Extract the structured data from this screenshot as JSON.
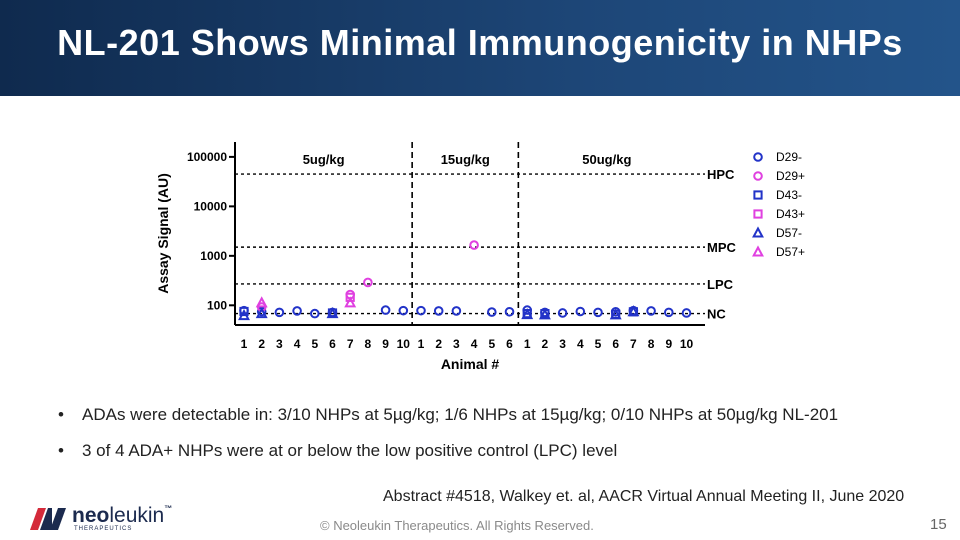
{
  "header": {
    "title": "NL-201 Shows Minimal Immunogenicity in NHPs"
  },
  "bullets": [
    "ADAs were detectable in:  3/10 NHPs at 5µg/kg; 1/6 NHPs at 15µg/kg; 0/10 NHPs at 50µg/kg NL-201",
    "3 of 4 ADA+ NHPs were at or below the low positive control (LPC) level"
  ],
  "bullet_symbol": "•",
  "citation": "Abstract #4518, Walkey et. al, AACR Virtual Annual Meeting II, June 2020",
  "footer": "© Neoleukin Therapeutics. All Rights Reserved.",
  "page_number": "15",
  "logo": {
    "word_bold": "neo",
    "word_light": "leukin",
    "tm": "™",
    "subtitle": "THERAPEUTICS"
  },
  "colors": {
    "header_bg": "#1d4677",
    "blue": "#2233c8",
    "magenta": "#e040e0",
    "logo_red": "#d42a3a",
    "logo_navy": "#1b2a4e"
  },
  "chart_data": {
    "type": "scatter",
    "ylabel": "Assay Signal (AU)",
    "xlabel": "Animal #",
    "yscale": "log",
    "ylim": [
      40,
      200000
    ],
    "yticks": [
      {
        "value": 100,
        "label": "100"
      },
      {
        "value": 1000,
        "label": "1000"
      },
      {
        "value": 10000,
        "label": "10000"
      },
      {
        "value": 100000,
        "label": "100000"
      }
    ],
    "groups": [
      {
        "label": "5ug/kg",
        "animals": [
          "1",
          "2",
          "3",
          "4",
          "5",
          "6",
          "7",
          "8",
          "9",
          "10"
        ]
      },
      {
        "label": "15ug/kg",
        "animals": [
          "1",
          "2",
          "3",
          "4",
          "5",
          "6"
        ]
      },
      {
        "label": "50ug/kg",
        "animals": [
          "1",
          "2",
          "3",
          "4",
          "5",
          "6",
          "7",
          "8",
          "9",
          "10"
        ]
      }
    ],
    "reference_lines": [
      {
        "label": "HPC",
        "value": 45000
      },
      {
        "label": "MPC",
        "value": 1500
      },
      {
        "label": "LPC",
        "value": 270
      },
      {
        "label": "NC",
        "value": 68
      }
    ],
    "legend": [
      {
        "name": "D29-",
        "marker": "circle",
        "color": "#2233c8"
      },
      {
        "name": "D29+",
        "marker": "circle",
        "color": "#e040e0"
      },
      {
        "name": "D43-",
        "marker": "square",
        "color": "#2233c8"
      },
      {
        "name": "D43+",
        "marker": "square",
        "color": "#e040e0"
      },
      {
        "name": "D57-",
        "marker": "triangle",
        "color": "#2233c8"
      },
      {
        "name": "D57+",
        "marker": "triangle",
        "color": "#e040e0"
      }
    ],
    "series": [
      {
        "name": "D29-",
        "points": [
          {
            "g": 0,
            "a": 1,
            "y": 78
          },
          {
            "g": 0,
            "a": 2,
            "y": 75
          },
          {
            "g": 0,
            "a": 3,
            "y": 72
          },
          {
            "g": 0,
            "a": 4,
            "y": 77
          },
          {
            "g": 0,
            "a": 5,
            "y": 68
          },
          {
            "g": 0,
            "a": 6,
            "y": 72
          },
          {
            "g": 0,
            "a": 9,
            "y": 80
          },
          {
            "g": 0,
            "a": 10,
            "y": 78
          },
          {
            "g": 1,
            "a": 1,
            "y": 78
          },
          {
            "g": 1,
            "a": 2,
            "y": 77
          },
          {
            "g": 1,
            "a": 3,
            "y": 77
          },
          {
            "g": 1,
            "a": 5,
            "y": 73
          },
          {
            "g": 1,
            "a": 6,
            "y": 74
          },
          {
            "g": 2,
            "a": 1,
            "y": 80
          },
          {
            "g": 2,
            "a": 2,
            "y": 72
          },
          {
            "g": 2,
            "a": 3,
            "y": 70
          },
          {
            "g": 2,
            "a": 4,
            "y": 75
          },
          {
            "g": 2,
            "a": 5,
            "y": 72
          },
          {
            "g": 2,
            "a": 6,
            "y": 74
          },
          {
            "g": 2,
            "a": 7,
            "y": 78
          },
          {
            "g": 2,
            "a": 8,
            "y": 77
          },
          {
            "g": 2,
            "a": 9,
            "y": 72
          },
          {
            "g": 2,
            "a": 10,
            "y": 70
          }
        ]
      },
      {
        "name": "D29+",
        "points": [
          {
            "g": 0,
            "a": 2,
            "y": 92
          },
          {
            "g": 0,
            "a": 7,
            "y": 165
          },
          {
            "g": 0,
            "a": 8,
            "y": 290
          },
          {
            "g": 1,
            "a": 4,
            "y": 1650
          }
        ]
      },
      {
        "name": "D43-",
        "points": [
          {
            "g": 0,
            "a": 1,
            "y": 75
          },
          {
            "g": 0,
            "a": 6,
            "y": 70
          },
          {
            "g": 2,
            "a": 1,
            "y": 68
          },
          {
            "g": 2,
            "a": 2,
            "y": 68
          },
          {
            "g": 2,
            "a": 6,
            "y": 66
          },
          {
            "g": 2,
            "a": 7,
            "y": 74
          }
        ]
      },
      {
        "name": "D43+",
        "points": [
          {
            "g": 0,
            "a": 7,
            "y": 145
          }
        ]
      },
      {
        "name": "D57-",
        "points": [
          {
            "g": 0,
            "a": 1,
            "y": 62
          },
          {
            "g": 0,
            "a": 2,
            "y": 68
          },
          {
            "g": 0,
            "a": 6,
            "y": 68
          },
          {
            "g": 2,
            "a": 1,
            "y": 65
          },
          {
            "g": 2,
            "a": 2,
            "y": 64
          },
          {
            "g": 2,
            "a": 6,
            "y": 64
          },
          {
            "g": 2,
            "a": 7,
            "y": 74
          }
        ]
      },
      {
        "name": "D57+",
        "points": [
          {
            "g": 0,
            "a": 2,
            "y": 112
          },
          {
            "g": 0,
            "a": 7,
            "y": 112
          }
        ]
      }
    ]
  }
}
